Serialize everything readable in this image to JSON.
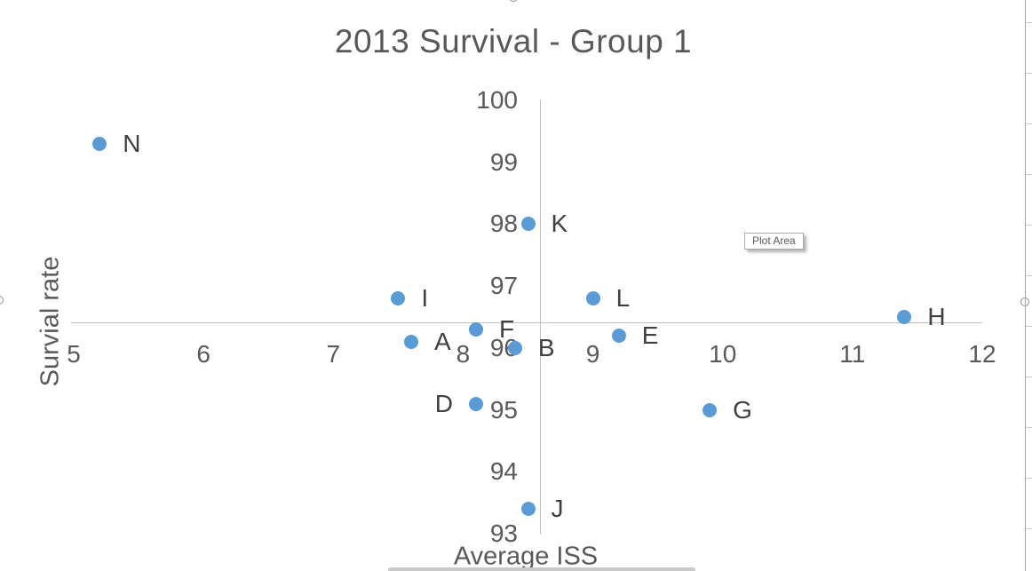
{
  "chart_data": {
    "type": "scatter",
    "title": "2013 Survival - Group 1",
    "xlabel": "Average ISS",
    "ylabel": "Survial rate",
    "xlim": [
      5,
      12
    ],
    "ylim": [
      93,
      100
    ],
    "x_ticks": [
      5,
      6,
      7,
      8,
      9,
      10,
      11,
      12
    ],
    "y_ticks": [
      100,
      99,
      98,
      97,
      96,
      95,
      94,
      93
    ],
    "axes_cross": {
      "x": 8.59,
      "y": 96.42
    },
    "grid": false,
    "legend": "none",
    "marker_color": "#5B9BD5",
    "points": [
      {
        "label": "N",
        "x": 5.2,
        "y": 99.3,
        "label_side": "right"
      },
      {
        "label": "K",
        "x": 8.5,
        "y": 98.0,
        "label_side": "right"
      },
      {
        "label": "I",
        "x": 7.5,
        "y": 96.8,
        "label_side": "right"
      },
      {
        "label": "L",
        "x": 9.0,
        "y": 96.8,
        "label_side": "right"
      },
      {
        "label": "H",
        "x": 11.4,
        "y": 96.5,
        "label_side": "right"
      },
      {
        "label": "F",
        "x": 8.1,
        "y": 96.3,
        "label_side": "right"
      },
      {
        "label": "E",
        "x": 9.2,
        "y": 96.2,
        "label_side": "right"
      },
      {
        "label": "A",
        "x": 7.6,
        "y": 96.1,
        "label_side": "right"
      },
      {
        "label": "B",
        "x": 8.4,
        "y": 96.0,
        "label_side": "right"
      },
      {
        "label": "D",
        "x": 8.1,
        "y": 95.1,
        "label_side": "left"
      },
      {
        "label": "G",
        "x": 9.9,
        "y": 95.0,
        "label_side": "right"
      },
      {
        "label": "J",
        "x": 8.5,
        "y": 93.4,
        "label_side": "right"
      }
    ]
  },
  "tooltip": {
    "label": "Plot Area"
  },
  "colors": {
    "marker": "#5B9BD5",
    "axis_line": "#bfbfbf",
    "text": "#595959",
    "point_label": "#404040"
  }
}
